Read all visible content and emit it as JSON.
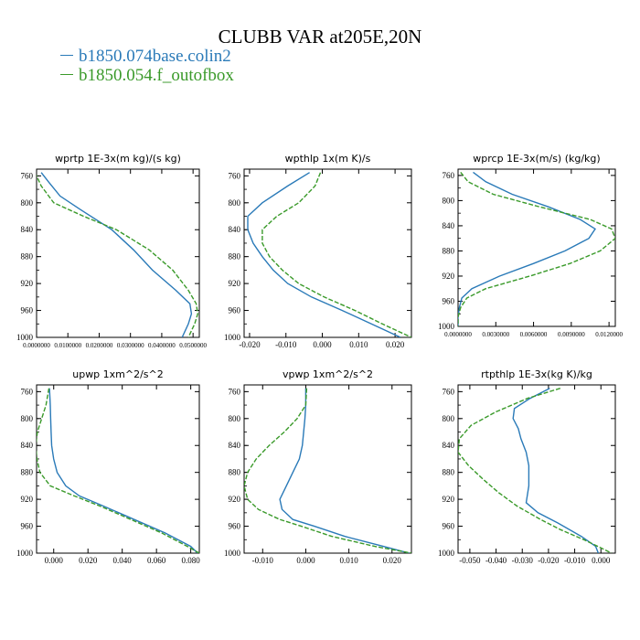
{
  "title": "CLUBB VAR at205E,20N",
  "legend": [
    {
      "label": "b1850.074base.colin2",
      "color": "#2a7ab8"
    },
    {
      "label": "b1850.054.f_outofbox",
      "color": "#3a9a2a"
    }
  ],
  "chart_data": [
    {
      "type": "line",
      "title": "wprtp   1E-3x(m kg)/(s kg)",
      "xlim": [
        0.0,
        0.052
      ],
      "ylim": [
        1000,
        750
      ],
      "xticks": [
        0.0,
        0.01,
        0.02,
        0.03,
        0.04,
        0.05
      ],
      "xtick_labels": [
        "0.0000000",
        "0.0100000",
        "0.0200000",
        "0.0300000",
        "0.0400000",
        "0.0500000"
      ],
      "yticks": [
        760,
        800,
        840,
        880,
        920,
        960,
        1000
      ],
      "series": [
        {
          "name": "b1850.074base.colin2",
          "y": [
            755,
            770,
            790,
            810,
            840,
            870,
            900,
            930,
            950,
            965,
            980,
            1000
          ],
          "x": [
            0.0015,
            0.004,
            0.0075,
            0.014,
            0.024,
            0.031,
            0.037,
            0.0445,
            0.049,
            0.0495,
            0.0485,
            0.0465
          ]
        },
        {
          "name": "b1850.054.f_outofbox",
          "y": [
            755,
            775,
            800,
            820,
            840,
            870,
            900,
            930,
            950,
            965,
            980,
            1000
          ],
          "x": [
            -0.0005,
            0.0015,
            0.0055,
            0.015,
            0.0255,
            0.036,
            0.0435,
            0.0485,
            0.051,
            0.0515,
            0.0505,
            0.0485
          ]
        }
      ]
    },
    {
      "type": "line",
      "title": "wpthlp   1x(m K)/s",
      "xlim": [
        -0.0215,
        0.0245
      ],
      "ylim": [
        1000,
        750
      ],
      "xticks": [
        -0.02,
        -0.01,
        0.0,
        0.01,
        0.02
      ],
      "xtick_labels": [
        "-0.020",
        "-0.010",
        "0.000",
        "0.010",
        "0.020"
      ],
      "yticks": [
        760,
        800,
        840,
        880,
        920,
        960,
        1000
      ],
      "series": [
        {
          "name": "b1850.074base.colin2",
          "y": [
            755,
            775,
            800,
            820,
            840,
            860,
            880,
            900,
            920,
            940,
            960,
            980,
            1000
          ],
          "x": [
            -0.0035,
            -0.0095,
            -0.0165,
            -0.0205,
            -0.0205,
            -0.019,
            -0.0165,
            -0.0135,
            -0.0095,
            -0.003,
            0.0055,
            0.0135,
            0.0215
          ]
        },
        {
          "name": "b1850.054.f_outofbox",
          "y": [
            755,
            775,
            800,
            820,
            840,
            860,
            880,
            900,
            920,
            940,
            960,
            980,
            1000
          ],
          "x": [
            -0.0005,
            -0.002,
            -0.0065,
            -0.0125,
            -0.0165,
            -0.0165,
            -0.0145,
            -0.011,
            -0.0065,
            0.0005,
            0.009,
            0.0165,
            0.0245
          ]
        }
      ]
    },
    {
      "type": "line",
      "title": "wprcp   1E-3x(m/s) (kg/kg)",
      "xlim": [
        0.0,
        0.0125
      ],
      "ylim": [
        1000,
        750
      ],
      "xticks": [
        0.0,
        0.003,
        0.006,
        0.009,
        0.012
      ],
      "xtick_labels": [
        "0.0000000",
        "0.0030000",
        "0.0060000",
        "0.0090000",
        "0.0120000"
      ],
      "yticks": [
        760,
        800,
        840,
        880,
        920,
        960,
        1000
      ],
      "series": [
        {
          "name": "b1850.074base.colin2",
          "y": [
            755,
            770,
            790,
            810,
            830,
            845,
            860,
            880,
            900,
            920,
            940,
            955,
            970,
            985,
            1000
          ],
          "x": [
            0.0012,
            0.0022,
            0.0043,
            0.0072,
            0.0097,
            0.0109,
            0.0104,
            0.0085,
            0.006,
            0.0033,
            0.0011,
            0.0003,
            0.0001,
            0.0,
            0.0
          ]
        },
        {
          "name": "b1850.054.f_outofbox",
          "y": [
            755,
            770,
            790,
            810,
            830,
            845,
            860,
            880,
            900,
            920,
            940,
            955,
            970,
            985,
            1000
          ],
          "x": [
            0.0002,
            0.0008,
            0.0028,
            0.0065,
            0.0105,
            0.0122,
            0.0125,
            0.0113,
            0.0089,
            0.0057,
            0.0022,
            0.0007,
            0.0002,
            0.0,
            0.0
          ]
        }
      ]
    },
    {
      "type": "line",
      "title": "upwp   1xm^2/s^2",
      "xlim": [
        -0.01,
        0.085
      ],
      "ylim": [
        1000,
        750
      ],
      "xticks": [
        0.0,
        0.02,
        0.04,
        0.06,
        0.08
      ],
      "xtick_labels": [
        "0.000",
        "0.020",
        "0.040",
        "0.060",
        "0.080"
      ],
      "yticks": [
        760,
        800,
        840,
        880,
        920,
        960,
        1000
      ],
      "series": [
        {
          "name": "b1850.074base.colin2",
          "y": [
            755,
            780,
            800,
            820,
            840,
            860,
            880,
            900,
            915,
            930,
            950,
            970,
            990,
            1000
          ],
          "x": [
            -0.0025,
            -0.002,
            -0.0018,
            -0.0015,
            -0.0012,
            0.0,
            0.002,
            0.007,
            0.015,
            0.029,
            0.047,
            0.065,
            0.08,
            0.084
          ]
        },
        {
          "name": "b1850.054.f_outofbox",
          "y": [
            755,
            780,
            800,
            820,
            840,
            860,
            880,
            900,
            915,
            930,
            950,
            970,
            990,
            1000
          ],
          "x": [
            -0.0028,
            -0.0045,
            -0.007,
            -0.0095,
            -0.0105,
            -0.0098,
            -0.008,
            -0.002,
            0.012,
            0.027,
            0.045,
            0.063,
            0.078,
            0.085
          ]
        }
      ]
    },
    {
      "type": "line",
      "title": "vpwp   1xm^2/s^2",
      "xlim": [
        -0.0143,
        0.0245
      ],
      "ylim": [
        1000,
        750
      ],
      "xticks": [
        -0.01,
        0.0,
        0.01,
        0.02
      ],
      "xtick_labels": [
        "-0.010",
        "0.000",
        "0.010",
        "0.020"
      ],
      "yticks": [
        760,
        800,
        840,
        880,
        920,
        960,
        1000
      ],
      "series": [
        {
          "name": "b1850.074base.colin2",
          "y": [
            755,
            780,
            800,
            820,
            840,
            860,
            880,
            900,
            920,
            935,
            950,
            960,
            975,
            990,
            1000
          ],
          "x": [
            0.0,
            0.0,
            -0.0002,
            -0.0005,
            -0.0008,
            -0.0015,
            -0.003,
            -0.0045,
            -0.006,
            -0.0055,
            -0.003,
            0.002,
            0.009,
            0.018,
            0.024
          ]
        },
        {
          "name": "b1850.054.f_outofbox",
          "y": [
            755,
            780,
            800,
            820,
            840,
            860,
            880,
            900,
            920,
            935,
            950,
            960,
            975,
            990,
            1000
          ],
          "x": [
            0.0002,
            0.0,
            -0.002,
            -0.005,
            -0.0085,
            -0.0115,
            -0.0135,
            -0.0143,
            -0.0135,
            -0.011,
            -0.006,
            -0.001,
            0.006,
            0.016,
            0.0245
          ]
        }
      ]
    },
    {
      "type": "line",
      "title": "rtpthlp   1E-3x(kg K)/kg",
      "xlim": [
        -0.0545,
        0.0055
      ],
      "ylim": [
        1000,
        750
      ],
      "xticks": [
        -0.05,
        -0.04,
        -0.03,
        -0.02,
        -0.01,
        0.0
      ],
      "xtick_labels": [
        "-0.050",
        "-0.040",
        "-0.030",
        "-0.020",
        "-0.010",
        "0.000"
      ],
      "yticks": [
        760,
        800,
        840,
        880,
        920,
        960,
        1000
      ],
      "series": [
        {
          "name": "b1850.074base.colin2",
          "y": [
            755,
            770,
            785,
            800,
            815,
            830,
            850,
            870,
            900,
            925,
            940,
            955,
            975,
            990,
            1000
          ],
          "x": [
            -0.0195,
            -0.027,
            -0.033,
            -0.0335,
            -0.0315,
            -0.0305,
            -0.0285,
            -0.0275,
            -0.0275,
            -0.0285,
            -0.024,
            -0.0165,
            -0.0075,
            -0.002,
            -0.001
          ]
        },
        {
          "name": "b1850.054.f_outofbox",
          "y": [
            755,
            770,
            790,
            810,
            830,
            850,
            870,
            890,
            910,
            930,
            950,
            965,
            980,
            995,
            1000
          ],
          "x": [
            -0.0155,
            -0.028,
            -0.04,
            -0.0495,
            -0.054,
            -0.0545,
            -0.0505,
            -0.045,
            -0.039,
            -0.032,
            -0.023,
            -0.0155,
            -0.0065,
            0.0015,
            0.004
          ]
        }
      ]
    }
  ]
}
